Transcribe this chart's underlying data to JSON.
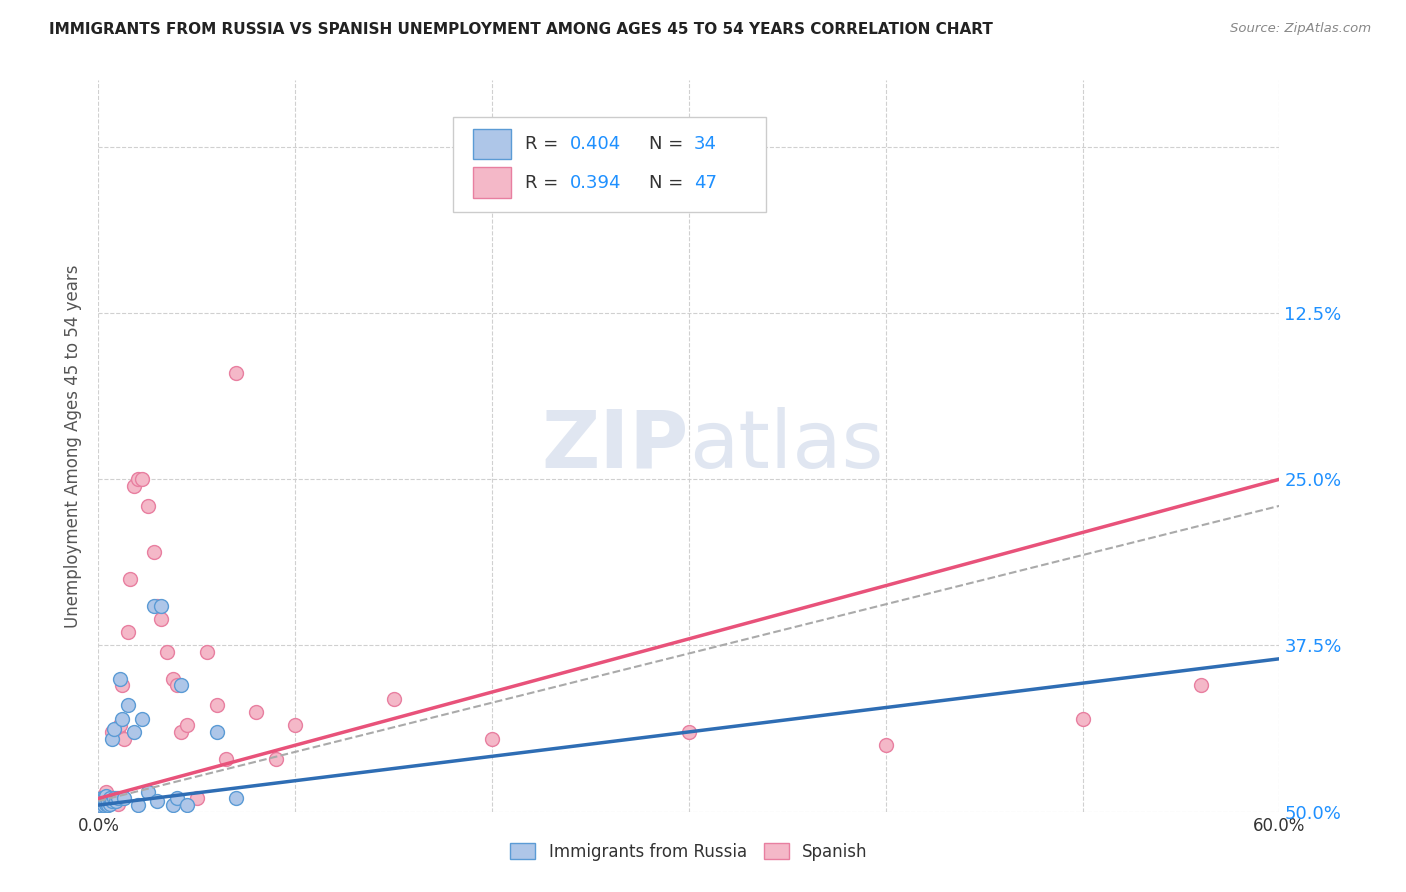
{
  "title": "IMMIGRANTS FROM RUSSIA VS SPANISH UNEMPLOYMENT AMONG AGES 45 TO 54 YEARS CORRELATION CHART",
  "source": "Source: ZipAtlas.com",
  "ylabel": "Unemployment Among Ages 45 to 54 years",
  "xlim": [
    0,
    0.6
  ],
  "ylim": [
    0,
    0.55
  ],
  "xticks": [
    0.0,
    0.1,
    0.2,
    0.3,
    0.4,
    0.5,
    0.6
  ],
  "yticks": [
    0.0,
    0.125,
    0.25,
    0.375,
    0.5
  ],
  "right_ytick_labels": [
    "50.0%",
    "37.5%",
    "25.0%",
    "12.5%",
    ""
  ],
  "legend_r1": "0.404",
  "legend_n1": "34",
  "legend_r2": "0.394",
  "legend_n2": "47",
  "blue_scatter_x": [
    0.001,
    0.002,
    0.002,
    0.003,
    0.003,
    0.004,
    0.004,
    0.005,
    0.005,
    0.006,
    0.006,
    0.007,
    0.007,
    0.008,
    0.008,
    0.009,
    0.01,
    0.011,
    0.012,
    0.013,
    0.015,
    0.018,
    0.02,
    0.022,
    0.025,
    0.028,
    0.03,
    0.032,
    0.038,
    0.04,
    0.042,
    0.045,
    0.06,
    0.07
  ],
  "blue_scatter_y": [
    0.005,
    0.008,
    0.01,
    0.005,
    0.01,
    0.006,
    0.012,
    0.005,
    0.008,
    0.006,
    0.01,
    0.008,
    0.055,
    0.01,
    0.062,
    0.008,
    0.01,
    0.1,
    0.07,
    0.01,
    0.08,
    0.06,
    0.005,
    0.07,
    0.015,
    0.155,
    0.008,
    0.155,
    0.005,
    0.01,
    0.095,
    0.005,
    0.06,
    0.01
  ],
  "pink_scatter_x": [
    0.001,
    0.002,
    0.002,
    0.003,
    0.003,
    0.004,
    0.004,
    0.005,
    0.005,
    0.006,
    0.007,
    0.007,
    0.008,
    0.009,
    0.01,
    0.01,
    0.011,
    0.012,
    0.013,
    0.015,
    0.016,
    0.018,
    0.02,
    0.022,
    0.025,
    0.028,
    0.03,
    0.032,
    0.035,
    0.038,
    0.04,
    0.042,
    0.045,
    0.05,
    0.055,
    0.06,
    0.065,
    0.07,
    0.08,
    0.09,
    0.1,
    0.15,
    0.2,
    0.3,
    0.4,
    0.5,
    0.56
  ],
  "pink_scatter_y": [
    0.005,
    0.006,
    0.01,
    0.006,
    0.012,
    0.008,
    0.015,
    0.006,
    0.01,
    0.008,
    0.01,
    0.06,
    0.008,
    0.01,
    0.006,
    0.06,
    0.065,
    0.095,
    0.055,
    0.135,
    0.175,
    0.245,
    0.25,
    0.25,
    0.23,
    0.195,
    0.155,
    0.145,
    0.12,
    0.1,
    0.095,
    0.06,
    0.065,
    0.01,
    0.12,
    0.08,
    0.04,
    0.33,
    0.075,
    0.04,
    0.065,
    0.085,
    0.055,
    0.06,
    0.05,
    0.07,
    0.095
  ],
  "blue_color": "#aec6e8",
  "blue_edge_color": "#5b9bd5",
  "pink_color": "#f4b8c8",
  "pink_edge_color": "#e87fa0",
  "trend_blue_color": "#2e6db4",
  "trend_pink_color": "#e8527a",
  "trend_gray_color": "#aaaaaa",
  "background_color": "#ffffff",
  "grid_color": "#d0d0d0",
  "watermark": "ZIPatlas",
  "blue_trend_end_y": 0.115,
  "pink_trend_end_y": 0.25,
  "gray_trend_end_y": 0.23
}
